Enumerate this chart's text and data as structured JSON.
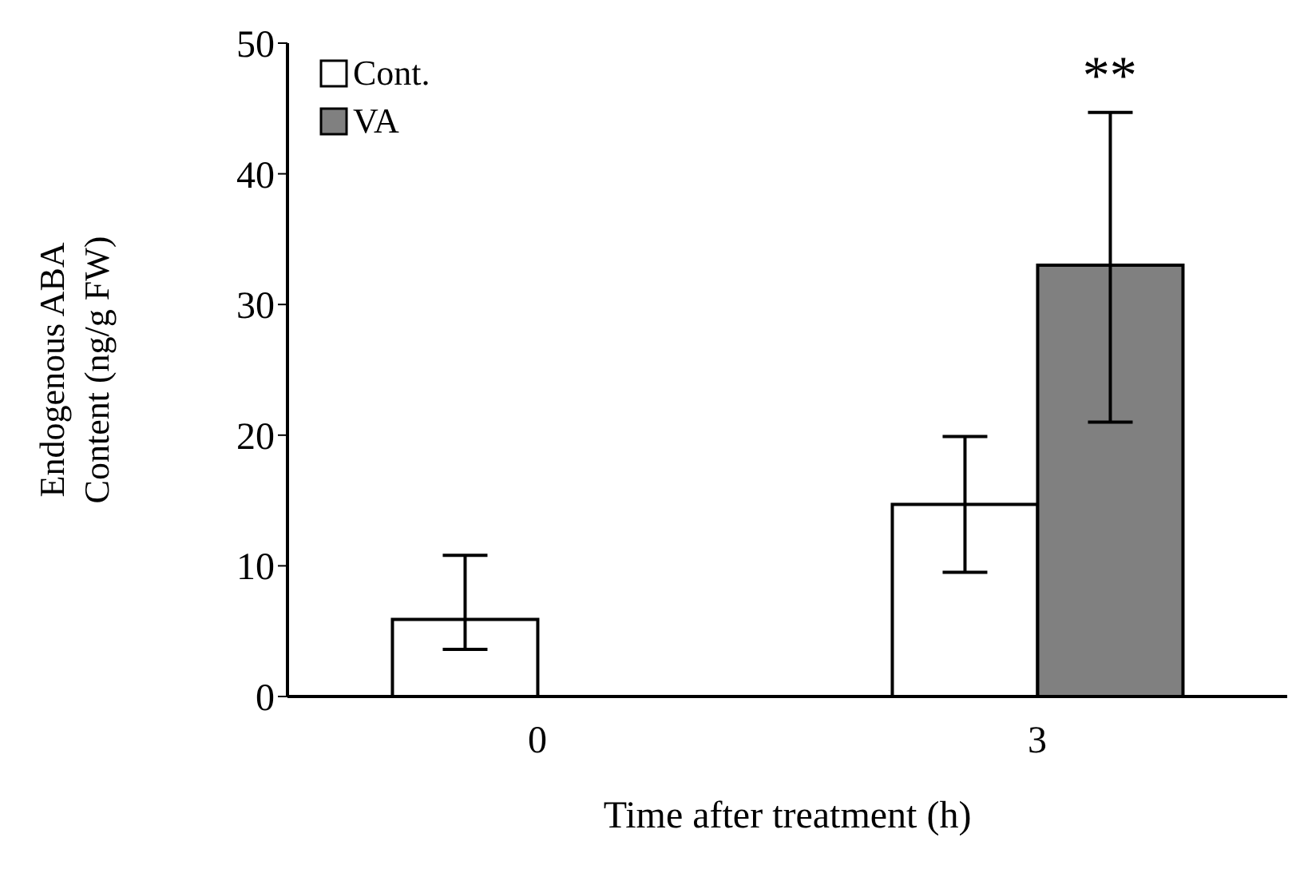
{
  "chart_data": {
    "type": "bar",
    "xlabel": "Time after treatment (h)",
    "ylabel": "Endogenous ABA Content (ng/g FW)",
    "categories": [
      "0",
      "3"
    ],
    "series": [
      {
        "name": "Cont.",
        "color": "#ffffff",
        "values": [
          5.9,
          14.7
        ],
        "errors": [
          [
            3.6,
            10.8
          ],
          [
            9.5,
            19.9
          ]
        ]
      },
      {
        "name": "VA",
        "color": "#808080",
        "values": [
          null,
          33.0
        ],
        "errors": [
          null,
          [
            21.0,
            44.7
          ]
        ]
      }
    ],
    "ylim": [
      0,
      50
    ],
    "yticks": [
      0,
      10,
      20,
      30,
      40,
      50
    ],
    "grid": false,
    "legend": "top left",
    "annotations": [
      "**"
    ]
  }
}
